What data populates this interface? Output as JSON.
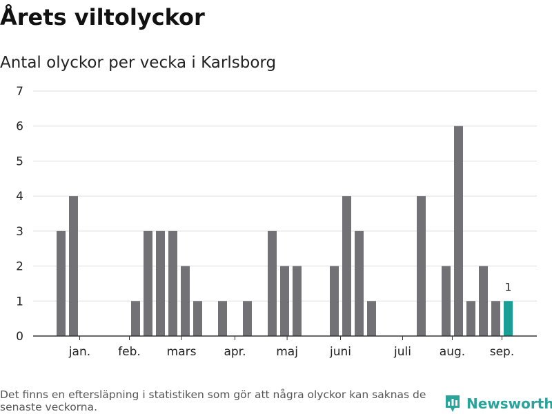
{
  "header": {
    "title": "Årets viltolyckor",
    "subtitle": "Antal olyckor per vecka i Karlsborg"
  },
  "footer": {
    "note": "Det finns en eftersläpning i statistiken som gör att några olyckor kan saknas de senaste veckorna.",
    "brand": "Newsworthy"
  },
  "colors": {
    "bar": "#727176",
    "highlight": "#1a9e96",
    "grid": "#dddddd",
    "axis": "#333333",
    "brand": "#2aa39b"
  },
  "chart_data": {
    "type": "bar",
    "x": [
      1,
      2,
      3,
      4,
      5,
      6,
      7,
      8,
      9,
      10,
      11,
      12,
      13,
      14,
      15,
      16,
      17,
      18,
      19,
      20,
      21,
      22,
      23,
      24,
      25,
      26,
      27,
      28,
      29,
      30,
      31,
      32,
      33,
      34,
      35,
      36,
      37,
      38,
      39,
      40
    ],
    "values": [
      3,
      4,
      0,
      0,
      0,
      0,
      1,
      3,
      3,
      3,
      2,
      1,
      0,
      1,
      0,
      1,
      0,
      3,
      2,
      2,
      0,
      0,
      2,
      4,
      3,
      1,
      0,
      0,
      0,
      4,
      0,
      2,
      6,
      1,
      2,
      1,
      1,
      0,
      0,
      0
    ],
    "highlight_index": 36,
    "highlight_label": "1",
    "ylim": [
      0,
      7
    ],
    "yticks": [
      0,
      1,
      2,
      3,
      4,
      5,
      6,
      7
    ],
    "month_labels": [
      {
        "label": "jan.",
        "x": 2.5
      },
      {
        "label": "feb.",
        "x": 6.5
      },
      {
        "label": "mars",
        "x": 10.7
      },
      {
        "label": "apr.",
        "x": 15
      },
      {
        "label": "maj",
        "x": 19.2
      },
      {
        "label": "juni",
        "x": 23.5
      },
      {
        "label": "juli",
        "x": 28.5
      },
      {
        "label": "aug.",
        "x": 32.5
      },
      {
        "label": "sep.",
        "x": 36.5
      }
    ],
    "grid": true,
    "xlabel": "",
    "ylabel": ""
  }
}
